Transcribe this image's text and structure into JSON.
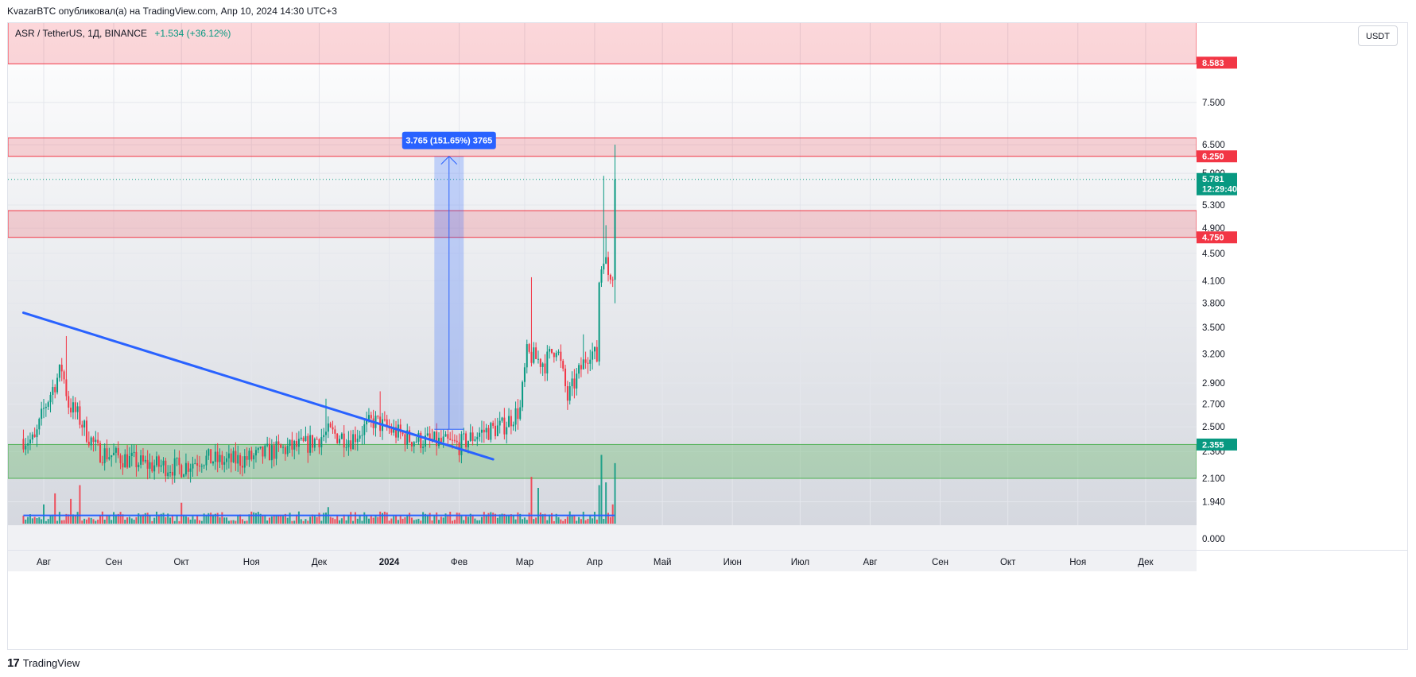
{
  "header": {
    "published_by": "KvazarBTC опубликовал(а) на TradingView.com, Апр 10, 2024 14:30 UTC+3"
  },
  "legend": {
    "symbol": "ASR / TetherUS, 1Д, BINANCE",
    "change": "+1.534 (+36.12%)"
  },
  "currency_button": "USDT",
  "footer": {
    "brand": "TradingView"
  },
  "colors": {
    "up": "#089981",
    "down": "#f23645",
    "trendline": "#2962ff",
    "resistance_zone": "#f23645",
    "support_zone": "#4caf50",
    "measure": "#2962ff"
  },
  "chart_data": {
    "type": "candlestick",
    "symbol": "ASR / TetherUS",
    "interval": "1Д",
    "exchange": "BINANCE",
    "y_scale": "log",
    "y_ticks": [
      "7.500",
      "6.500",
      "5.900",
      "5.300",
      "4.900",
      "4.500",
      "4.100",
      "3.800",
      "3.500",
      "3.200",
      "2.900",
      "2.700",
      "2.500",
      "2.300",
      "2.100",
      "1.940",
      "0.000"
    ],
    "x_ticks": [
      "Авг",
      "Сен",
      "Окт",
      "Ноя",
      "Дек",
      "2024",
      "Фев",
      "Мар",
      "Апр",
      "Май",
      "Июн",
      "Июл",
      "Авг",
      "Сен",
      "Окт",
      "Ноя",
      "Дек"
    ],
    "x_range": [
      "2023-07-23",
      "2024-12-30"
    ],
    "price_tags": [
      {
        "value": "8.583",
        "color": "#f23645"
      },
      {
        "value": "6.250",
        "color": "#f23645"
      },
      {
        "value": "5.781",
        "sub": "12:29:40",
        "color": "#089981"
      },
      {
        "value": "4.750",
        "color": "#f23645"
      },
      {
        "value": "2.355",
        "color": "#089981"
      }
    ],
    "zones": [
      {
        "kind": "resistance",
        "low": 8.55,
        "high": 10.2
      },
      {
        "kind": "resistance",
        "low": 6.25,
        "high": 6.65
      },
      {
        "kind": "resistance",
        "low": 4.75,
        "high": 5.2
      },
      {
        "kind": "support",
        "low": 2.1,
        "high": 2.355
      }
    ],
    "trendline": {
      "start": [
        "2023-07-23",
        3.68
      ],
      "end": [
        "2024-02-16",
        2.24
      ]
    },
    "measure": {
      "label": "3.765 (151.65%) 3765",
      "date_start": "2024-01-21",
      "date_end": "2024-02-03",
      "from": 2.48,
      "to": 6.25
    },
    "current_price": 5.781,
    "countdown": "12:29:40",
    "change_abs": 1.534,
    "change_pct": 36.12,
    "price_keypoints": [
      [
        "2023-07-23",
        2.4
      ],
      [
        "2023-07-28",
        2.38
      ],
      [
        "2023-08-01",
        2.65
      ],
      [
        "2023-08-05",
        2.85
      ],
      [
        "2023-08-09",
        3.05
      ],
      [
        "2023-08-12",
        2.7
      ],
      [
        "2023-08-16",
        2.6
      ],
      [
        "2023-08-20",
        2.45
      ],
      [
        "2023-08-25",
        2.3
      ],
      [
        "2023-09-05",
        2.25
      ],
      [
        "2023-09-15",
        2.2
      ],
      [
        "2023-10-01",
        2.18
      ],
      [
        "2023-10-10",
        2.25
      ],
      [
        "2023-10-20",
        2.22
      ],
      [
        "2023-11-01",
        2.25
      ],
      [
        "2023-11-10",
        2.3
      ],
      [
        "2023-11-25",
        2.35
      ],
      [
        "2023-12-05",
        2.45
      ],
      [
        "2023-12-15",
        2.4
      ],
      [
        "2023-12-25",
        2.55
      ],
      [
        "2024-01-01",
        2.48
      ],
      [
        "2024-01-10",
        2.4
      ],
      [
        "2024-01-20",
        2.38
      ],
      [
        "2024-02-01",
        2.35
      ],
      [
        "2024-02-10",
        2.45
      ],
      [
        "2024-02-20",
        2.5
      ],
      [
        "2024-02-28",
        2.65
      ],
      [
        "2024-03-02",
        3.2
      ],
      [
        "2024-03-10",
        3.1
      ],
      [
        "2024-03-15",
        3.3
      ],
      [
        "2024-03-20",
        2.75
      ],
      [
        "2024-03-25",
        3.0
      ],
      [
        "2024-03-30",
        3.25
      ],
      [
        "2024-04-02",
        3.15
      ],
      [
        "2024-04-03",
        4.1
      ],
      [
        "2024-04-05",
        4.5
      ],
      [
        "2024-04-07",
        4.2
      ],
      [
        "2024-04-09",
        4.25
      ],
      [
        "2024-04-10",
        5.781
      ]
    ],
    "spikes": [
      {
        "date": "2023-08-11",
        "high": 3.4
      },
      {
        "date": "2023-12-04",
        "high": 2.75
      },
      {
        "date": "2023-12-28",
        "high": 2.82
      },
      {
        "date": "2024-03-04",
        "high": 4.15
      },
      {
        "date": "2024-03-27",
        "high": 3.42
      },
      {
        "date": "2024-04-05",
        "high": 5.85
      },
      {
        "date": "2024-04-06",
        "high": 4.95
      },
      {
        "date": "2024-04-10",
        "high": 6.5,
        "low": 3.8
      }
    ],
    "volume": {
      "baseline_avg": 0.15,
      "bars": [
        {
          "date": "2023-08-01",
          "v": 0.35
        },
        {
          "date": "2023-08-06",
          "v": 0.55
        },
        {
          "date": "2023-08-13",
          "v": 0.45
        },
        {
          "date": "2023-08-17",
          "v": 0.7
        },
        {
          "date": "2023-10-01",
          "v": 0.38
        },
        {
          "date": "2023-12-05",
          "v": 0.3
        },
        {
          "date": "2024-03-04",
          "v": 0.85
        },
        {
          "date": "2024-03-07",
          "v": 0.65
        },
        {
          "date": "2024-04-03",
          "v": 0.7
        },
        {
          "date": "2024-04-04",
          "v": 1.25
        },
        {
          "date": "2024-04-06",
          "v": 0.75
        },
        {
          "date": "2024-04-09",
          "v": 0.35
        },
        {
          "date": "2024-04-10",
          "v": 1.1
        }
      ]
    }
  }
}
